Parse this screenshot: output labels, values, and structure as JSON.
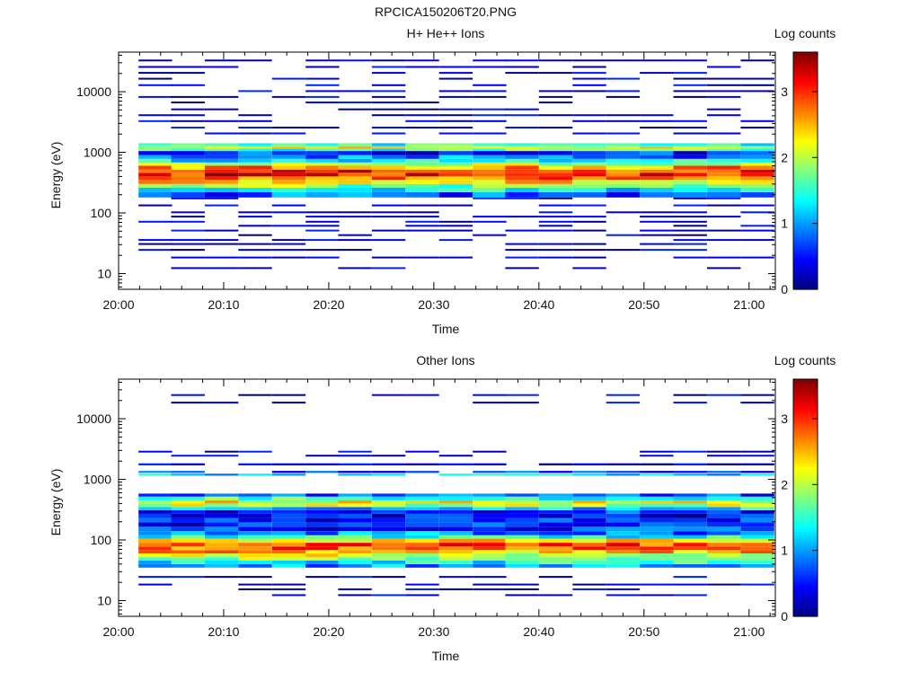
{
  "figure": {
    "title": "RPCICA150206T20.PNG"
  },
  "colormap": [
    "#00007f",
    "#0000ff",
    "#007fff",
    "#00ffff",
    "#7fff7f",
    "#ffff00",
    "#ff7f00",
    "#ff0000",
    "#7f0000"
  ],
  "chart_data": [
    {
      "type": "heatmap",
      "title": "H+ He++ Ions",
      "xlabel": "Time",
      "ylabel": "Energy (eV)",
      "colorbar_label": "Log counts",
      "x_ticks": [
        "20:00",
        "20:10",
        "20:20",
        "20:30",
        "20:40",
        "20:50",
        "21:00"
      ],
      "xlim_minutes": [
        0,
        62.5
      ],
      "y_scale": "log",
      "ylim": [
        5.5,
        45000
      ],
      "y_ticks": [
        10,
        100,
        1000,
        10000
      ],
      "clim": [
        0,
        3.6
      ],
      "c_ticks": [
        0,
        1,
        2,
        3
      ],
      "time_bin_starts_minutes": [
        1.9,
        5.0,
        8.2,
        11.4,
        14.6,
        17.8,
        20.9,
        24.1,
        27.3,
        30.5,
        33.7,
        36.8,
        40.0,
        43.2,
        46.4,
        49.6,
        52.8,
        56.0,
        59.2
      ],
      "time_bin_width_minutes": 3.2,
      "core_profile": [
        [
          180,
          0.8
        ],
        [
          220,
          1.3
        ],
        [
          260,
          1.8
        ],
        [
          300,
          2.3
        ],
        [
          350,
          2.8
        ],
        [
          400,
          3.1
        ],
        [
          460,
          3.0
        ],
        [
          520,
          2.6
        ],
        [
          600,
          2.0
        ],
        [
          680,
          1.4
        ],
        [
          780,
          0.9
        ],
        [
          900,
          0.6
        ],
        [
          1050,
          1.6
        ],
        [
          1150,
          2.1
        ],
        [
          1260,
          1.5
        ]
      ],
      "sparse_energies": [
        12,
        18,
        24,
        30,
        35,
        42,
        50,
        60,
        70,
        85,
        100,
        130,
        170,
        2000,
        2500,
        3200,
        4000,
        5000,
        6500,
        8000,
        10000,
        12500,
        16000,
        20000,
        25000,
        32000
      ]
    },
    {
      "type": "heatmap",
      "title": "Other Ions",
      "xlabel": "Time",
      "ylabel": "Energy (eV)",
      "colorbar_label": "Log counts",
      "x_ticks": [
        "20:00",
        "20:10",
        "20:20",
        "20:30",
        "20:40",
        "20:50",
        "21:00"
      ],
      "xlim_minutes": [
        0,
        62.5
      ],
      "y_scale": "log",
      "ylim": [
        5.5,
        45000
      ],
      "y_ticks": [
        10,
        100,
        1000,
        10000
      ],
      "clim": [
        0,
        3.6
      ],
      "c_ticks": [
        0,
        1,
        2,
        3
      ],
      "time_bin_starts_minutes": [
        1.9,
        5.0,
        8.2,
        11.4,
        14.6,
        17.8,
        20.9,
        24.1,
        27.3,
        30.5,
        33.7,
        36.8,
        40.0,
        43.2,
        46.4,
        49.6,
        52.8,
        56.0,
        59.2
      ],
      "time_bin_width_minutes": 3.2,
      "core_profile": [
        [
          35,
          1.0
        ],
        [
          40,
          1.4
        ],
        [
          46,
          1.9
        ],
        [
          52,
          2.2
        ],
        [
          60,
          2.5
        ],
        [
          68,
          2.8
        ],
        [
          78,
          2.9
        ],
        [
          90,
          2.4
        ],
        [
          105,
          1.5
        ],
        [
          120,
          0.9
        ],
        [
          140,
          0.6
        ],
        [
          165,
          0.5
        ],
        [
          195,
          0.6
        ],
        [
          230,
          0.5
        ],
        [
          270,
          0.6
        ],
        [
          310,
          1.2
        ],
        [
          350,
          2.0
        ],
        [
          400,
          2.2
        ],
        [
          450,
          1.6
        ],
        [
          520,
          0.7
        ]
      ],
      "upper_band": [
        [
          1150,
          1.2
        ],
        [
          1280,
          0.6
        ],
        [
          1700,
          0.3
        ]
      ],
      "sparse_energies": [
        12,
        15,
        18,
        24,
        2800,
        2400,
        18000,
        24000
      ]
    }
  ]
}
